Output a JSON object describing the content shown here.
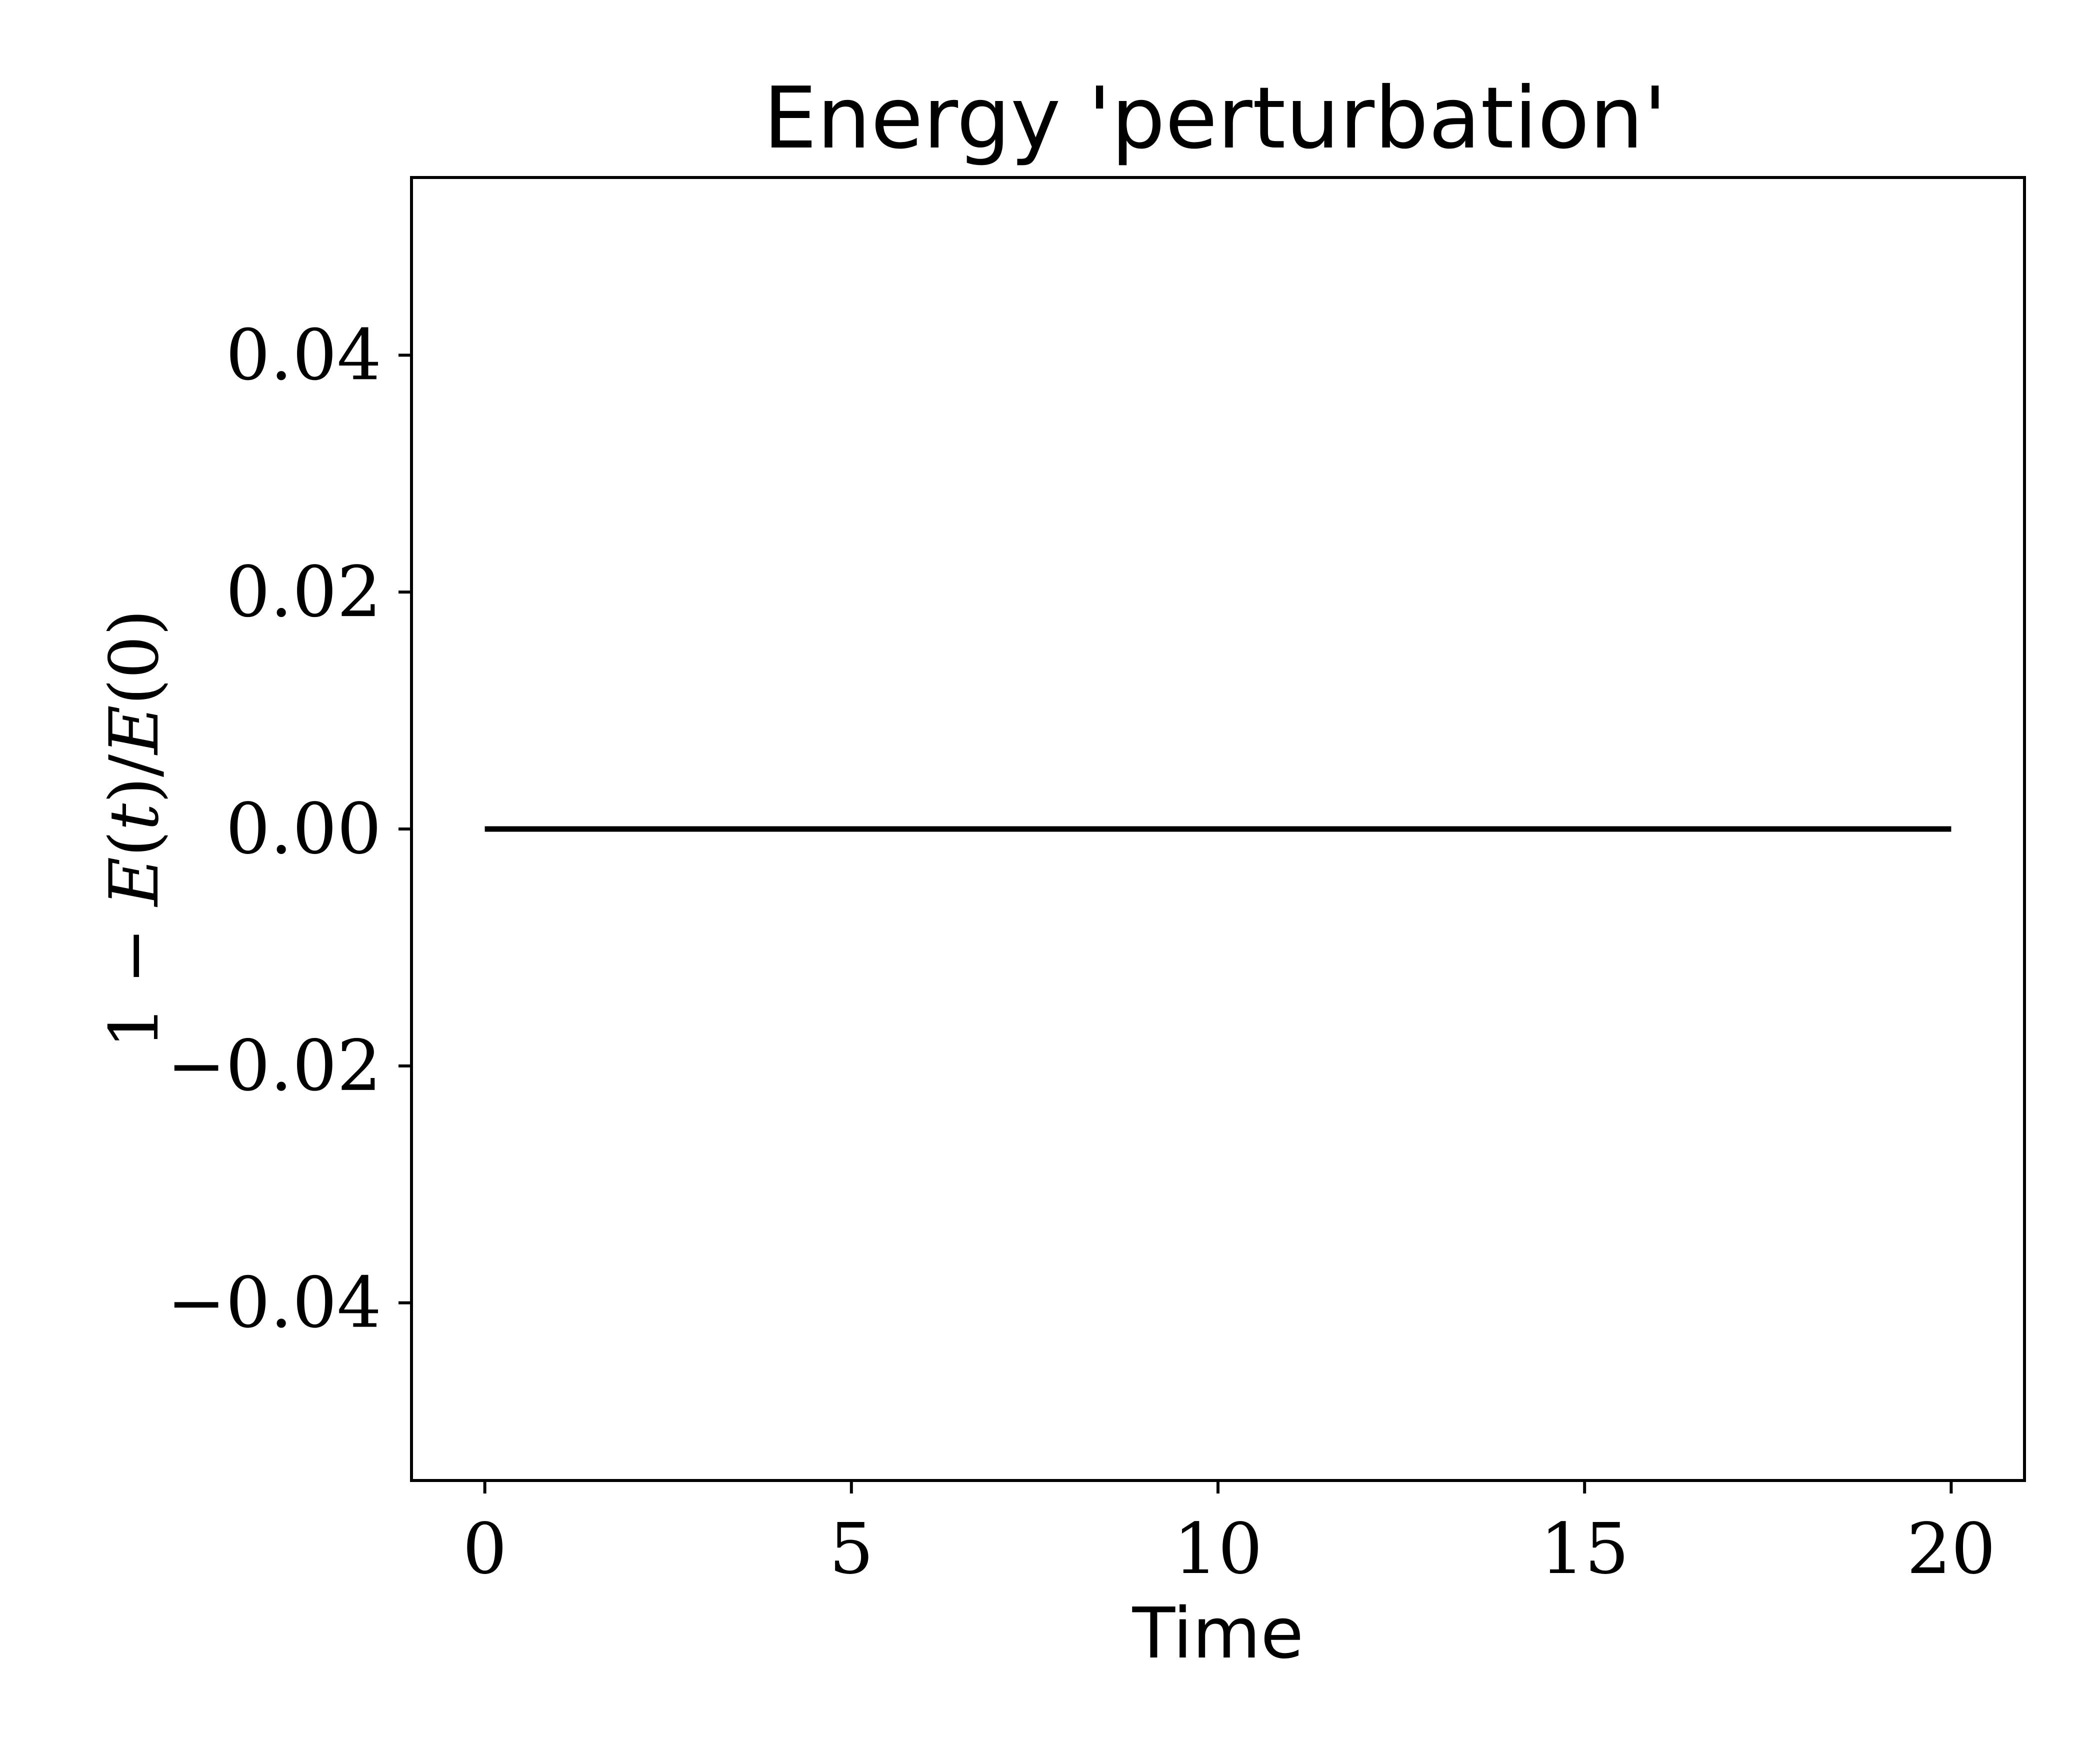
{
  "chart_data": {
    "type": "line",
    "title": "Energy 'perturbation'",
    "xlabel": "Time",
    "ylabel": "1 − E(t)/E(0)",
    "ylabel_parts": [
      "1 − ",
      "E",
      "(",
      "t",
      ")/",
      "E",
      "(0)"
    ],
    "xlim": [
      -1,
      21
    ],
    "ylim": [
      -0.055,
      0.055
    ],
    "xticks": [
      0,
      5,
      10,
      15,
      20
    ],
    "xtick_labels": [
      "0",
      "5",
      "10",
      "15",
      "20"
    ],
    "yticks": [
      0.04,
      0.02,
      0.0,
      -0.02,
      -0.04
    ],
    "ytick_labels": [
      "0.04",
      "0.02",
      "0.00",
      "−0.02",
      "−0.04"
    ],
    "grid": false,
    "series": [
      {
        "color": "#000000",
        "x": [
          0,
          20
        ],
        "y": [
          0.0,
          0.0
        ]
      }
    ]
  }
}
